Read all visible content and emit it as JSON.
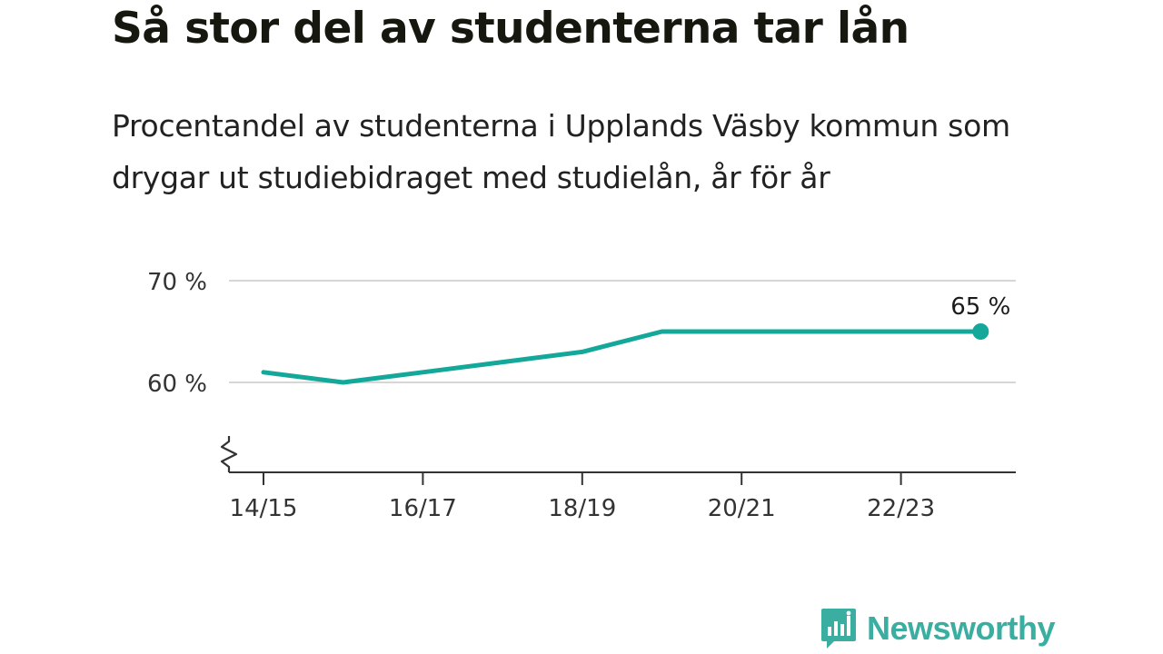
{
  "header": {
    "title": "Så stor del av studenterna tar lån",
    "subtitle": "Procentandel av studenterna i Upplands Väsby kommun som drygar ut studiebidraget med studielån, år för år"
  },
  "chart_data": {
    "type": "line",
    "x": [
      "14/15",
      "15/16",
      "16/17",
      "17/18",
      "18/19",
      "19/20",
      "20/21",
      "21/22",
      "22/23",
      "23/24"
    ],
    "series": [
      {
        "values": [
          61,
          60,
          61,
          62,
          63,
          65,
          65,
          65,
          65,
          65
        ]
      }
    ],
    "x_tick_labels": [
      "14/15",
      "16/17",
      "18/19",
      "20/21",
      "22/23"
    ],
    "y_ticks": [
      60,
      70
    ],
    "y_tick_labels": [
      "60 %",
      "70 %"
    ],
    "ylim": [
      51,
      70
    ],
    "y_axis_break": true,
    "grid": true,
    "end_label": "65 %",
    "line_color": "#14a89a"
  },
  "brand": {
    "name": "Newsworthy",
    "color": "#3aaea0",
    "icon": "newsworthy-logo-icon"
  }
}
